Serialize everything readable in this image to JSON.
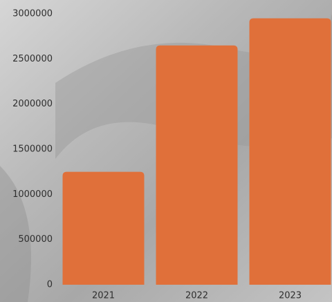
{
  "chart_data": {
    "type": "bar",
    "categories": [
      "2021",
      "2022",
      "2023"
    ],
    "values": [
      1250000,
      2650000,
      2950000
    ],
    "color": "#e0703a",
    "ylim": [
      0,
      3000000
    ],
    "yticks": [
      0,
      500000,
      1000000,
      1500000,
      2000000,
      2500000,
      3000000
    ],
    "grid": false
  }
}
